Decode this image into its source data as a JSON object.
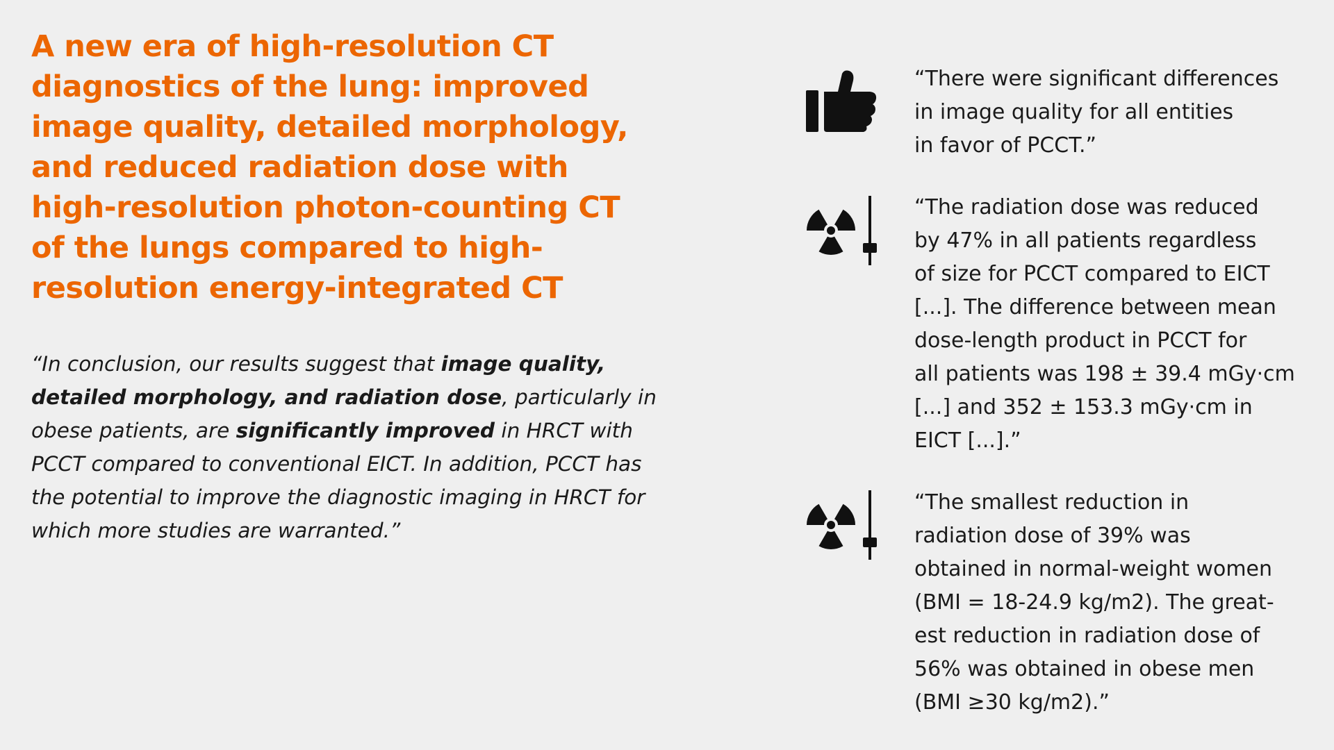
{
  "headline": {
    "lines": [
      "A new era of high-resolution CT",
      "diagnostics of the lung: improved",
      "image quality, detailed morphology,",
      "and reduced radiation dose with",
      "high-resolution photon-counting CT",
      "of the lungs compared to high-",
      "resolution energy-integrated CT"
    ]
  },
  "conclusion": {
    "lines": [
      [
        "“In conclusion, our results suggest that ",
        "image quality,"
      ],
      [
        "detailed morphology, and radiation dose",
        ", particularly in"
      ],
      [
        "obese patients, are ",
        "significantly improved",
        " in HRCT with"
      ],
      [
        "PCCT compared to conventional EICT. In addition, PCCT has"
      ],
      [
        "the potential to improve the diagnostic imaging in HRCT for"
      ],
      [
        "which more studies are warranted.”"
      ]
    ]
  },
  "quotes": [
    {
      "icon": "thumbs-up-icon",
      "lines": [
        "“There were significant differences",
        "in image quality for all entities",
        "in favor of PCCT.”"
      ]
    },
    {
      "icon": "radiation-dose-slider-icon",
      "lines": [
        "“The radiation dose was reduced",
        "by 47% in all patients regardless",
        "of size for PCCT compared to EICT",
        "[...]. The difference between mean",
        "dose-length product in PCCT for",
        "all patients was 198 ± 39.4 mGy·cm",
        "[...] and 352 ± 153.3 mGy·cm in",
        "EICT [...].”"
      ]
    },
    {
      "icon": "radiation-dose-slider-icon",
      "lines": [
        "“The smallest reduction in",
        "radiation dose of 39% was",
        "obtained in normal-weight women",
        "(BMI = 18-24.9 kg/m2). The great-",
        "est reduction in radiation dose of",
        "56% was obtained in obese men",
        "(BMI ≥30 kg/m2).”"
      ]
    }
  ],
  "colors": {
    "accent": "#ec6602",
    "text": "#1a1a1a",
    "background": "#efefef"
  }
}
